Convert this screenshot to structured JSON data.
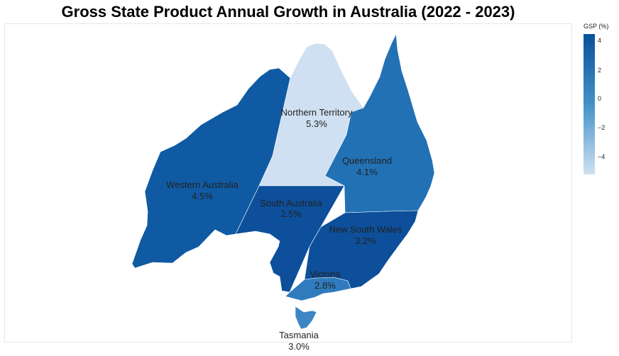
{
  "title": "Gross State Product Annual Growth in Australia (2022 - 2023)",
  "legend": {
    "title": "GSP (%)",
    "ticks": [
      "4",
      "2",
      "0",
      "−2",
      "−4"
    ],
    "color_top": "#08519c",
    "color_mid": "#4292c6",
    "color_bottom": "#d0e1f2"
  },
  "regions": [
    {
      "name": "Western Australia",
      "value": "4.5%",
      "color": "#0f5aa3"
    },
    {
      "name": "Northern Territory",
      "value": "5.3%",
      "color": "#cfe0f2"
    },
    {
      "name": "Queensland",
      "value": "4.1%",
      "color": "#2271b5"
    },
    {
      "name": "South Australia",
      "value": "2.5%",
      "color": "#0d4f9b"
    },
    {
      "name": "New South Wales",
      "value": "3.2%",
      "color": "#0d4f9b"
    },
    {
      "name": "Victoria",
      "value": "2.8%",
      "color": "#2f7bbd"
    },
    {
      "name": "Tasmania",
      "value": "3.0%",
      "color": "#3d85c3"
    }
  ],
  "chart_data": {
    "type": "choropleth",
    "title": "Gross State Product Annual Growth in Australia (2022 - 2023)",
    "colorbar_title": "GSP (%)",
    "colorbar_range": [
      -5,
      4
    ],
    "regions": [
      "Western Australia",
      "Northern Territory",
      "Queensland",
      "South Australia",
      "New South Wales",
      "Victoria",
      "Tasmania"
    ],
    "values": [
      4.5,
      5.3,
      4.1,
      2.5,
      3.2,
      2.8,
      3.0
    ]
  }
}
